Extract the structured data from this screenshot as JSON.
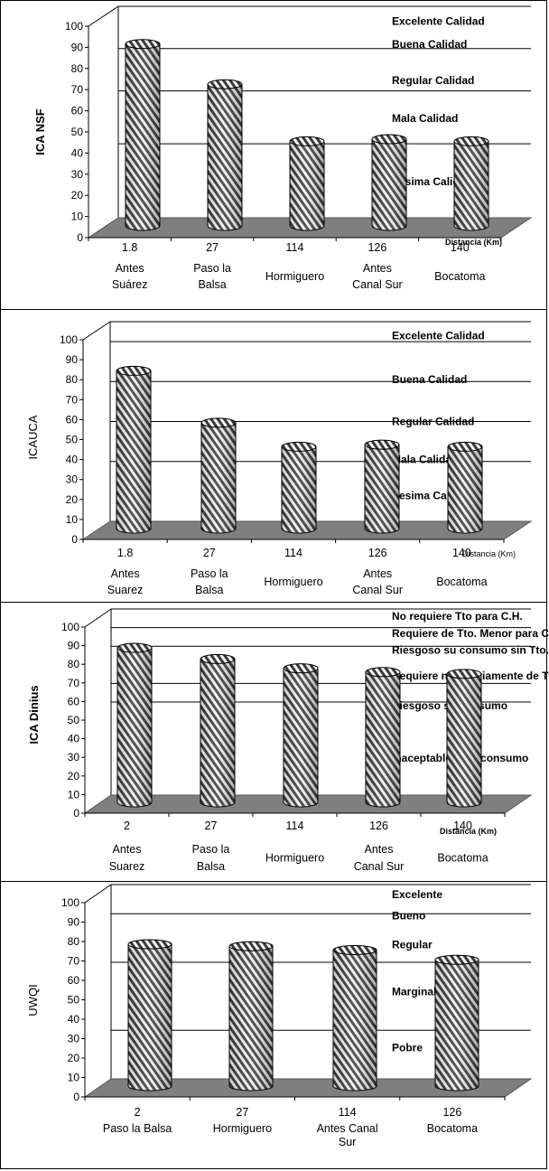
{
  "chart_data": [
    {
      "type": "bar",
      "ylabel": "ICA NSF",
      "ylabel_bold": true,
      "ylim": [
        0,
        100
      ],
      "yticks": [
        "0",
        "10",
        "20",
        "30",
        "40",
        "50",
        "60",
        "70",
        "80",
        "90",
        "100"
      ],
      "values": [
        86,
        67,
        40,
        41,
        40
      ],
      "x_numbers": [
        "1.8",
        "27",
        "114",
        "126",
        "140"
      ],
      "categories": [
        [
          "Antes",
          "Suárez"
        ],
        [
          "Paso la",
          "Balsa"
        ],
        [
          "Hormiguero"
        ],
        [
          "Antes",
          "Canal Sur"
        ],
        [
          "Bocatoma"
        ]
      ],
      "distance_label": "Distancia (Km)",
      "distance_bold": true,
      "thresholds": [
        100,
        80,
        60,
        35
      ],
      "zones": [
        {
          "label": "Excelente Calidad",
          "y": 93
        },
        {
          "label": "Buena Calidad",
          "y": 82
        },
        {
          "label": "Regular Calidad",
          "y": 65
        },
        {
          "label": "Mala Calidad",
          "y": 47
        },
        {
          "label": "Pesima Calidad",
          "y": 17
        }
      ]
    },
    {
      "type": "bar",
      "ylabel": "ICAUCA",
      "ylabel_bold": false,
      "ylim": [
        0,
        100
      ],
      "yticks": [
        "0",
        "10",
        "20",
        "30",
        "40",
        "50",
        "60",
        "70",
        "80",
        "90",
        "100"
      ],
      "values": [
        79,
        53,
        41,
        42,
        41
      ],
      "x_numbers": [
        "1.8",
        "27",
        "114",
        "126",
        "140"
      ],
      "categories": [
        [
          "Antes",
          "Suarez"
        ],
        [
          "Paso la",
          "Balsa"
        ],
        [
          "Hormiguero"
        ],
        [
          "Antes",
          "Canal Sur"
        ],
        [
          "Bocatoma"
        ]
      ],
      "distance_label": "Distancia (Km)",
      "distance_bold": false,
      "thresholds": [
        100,
        90,
        70,
        50,
        30
      ],
      "zones": [
        {
          "label": "Excelente Calidad",
          "y": 93
        },
        {
          "label": "Buena Calidad",
          "y": 71
        },
        {
          "label": "Regular Calidad",
          "y": 50
        },
        {
          "label": "Mala Calidad",
          "y": 31
        },
        {
          "label": "Pesima Calidad",
          "y": 13
        }
      ]
    },
    {
      "type": "bar",
      "ylabel": "ICA Dinius",
      "ylabel_bold": true,
      "ylim": [
        0,
        100
      ],
      "yticks": [
        "0",
        "10",
        "20",
        "30",
        "40",
        "50",
        "60",
        "70",
        "80",
        "90",
        "100"
      ],
      "values": [
        83,
        77,
        72,
        70,
        69
      ],
      "x_numbers": [
        "2",
        "27",
        "114",
        "126",
        "140"
      ],
      "categories": [
        [
          "Antes",
          "Suarez"
        ],
        [
          "Paso la",
          "Balsa"
        ],
        [
          "Hormiguero"
        ],
        [
          "Antes",
          "Canal Sur"
        ],
        [
          "Bocatoma"
        ]
      ],
      "distance_label": "Distancia (Km)",
      "distance_bold": true,
      "thresholds": [
        100,
        90,
        80,
        60,
        50
      ],
      "zones": [
        {
          "label": "No requiere Tto para C.H.",
          "y": 96
        },
        {
          "label": "Requiere de Tto. Menor para C.H.",
          "y": 87
        },
        {
          "label": "Riesgoso su consumo sin Tto.",
          "y": 78
        },
        {
          "label": "Requiere necesariamente de Tto.",
          "y": 64
        },
        {
          "label": "Riesgoso su consumo",
          "y": 48
        },
        {
          "label": "Inaceptable para consumo",
          "y": 20
        }
      ]
    },
    {
      "type": "bar",
      "ylabel": "UWQI",
      "ylabel_bold": false,
      "ylim": [
        0,
        100
      ],
      "yticks": [
        "0",
        "10",
        "20",
        "30",
        "40",
        "50",
        "60",
        "70",
        "80",
        "90",
        "100"
      ],
      "values": [
        73,
        72,
        70,
        65
      ],
      "x_numbers": [
        "2",
        "27",
        "114",
        "126"
      ],
      "categories": [
        [
          "Paso la Balsa"
        ],
        [
          "Hormiguero"
        ],
        [
          "Antes Canal",
          "Sur"
        ],
        [
          "Bocatoma"
        ]
      ],
      "distance_label": "",
      "distance_bold": false,
      "thresholds": [
        100,
        85,
        60,
        25
      ],
      "zones": [
        {
          "label": "Excelente",
          "y": 95
        },
        {
          "label": "Bueno",
          "y": 84
        },
        {
          "label": "Regular",
          "y": 69
        },
        {
          "label": "Marginal",
          "y": 45
        },
        {
          "label": "Pobre",
          "y": 16
        }
      ]
    }
  ]
}
